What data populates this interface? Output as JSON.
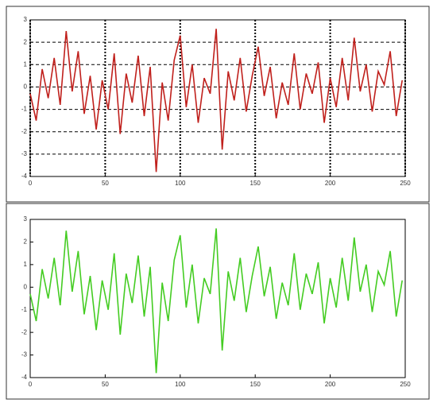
{
  "chart_data": [
    {
      "type": "line",
      "grid": true,
      "x": [
        0,
        4,
        8,
        12,
        16,
        20,
        24,
        28,
        32,
        36,
        40,
        44,
        48,
        52,
        56,
        60,
        64,
        68,
        72,
        76,
        80,
        84,
        88,
        92,
        96,
        100,
        104,
        108,
        112,
        116,
        120,
        124,
        128,
        132,
        136,
        140,
        144,
        148,
        152,
        156,
        160,
        164,
        168,
        172,
        176,
        180,
        184,
        188,
        192,
        196,
        200,
        204,
        208,
        212,
        216,
        220,
        224,
        228,
        232,
        236,
        240,
        244,
        248
      ],
      "series": [
        {
          "color": "#c0201c",
          "values": [
            -0.3,
            -1.5,
            0.8,
            -0.5,
            1.3,
            -0.8,
            2.5,
            -0.2,
            1.6,
            -1.2,
            0.5,
            -1.9,
            0.3,
            -1.0,
            1.5,
            -2.1,
            0.6,
            -0.7,
            1.4,
            -1.3,
            0.9,
            -3.8,
            0.2,
            -1.5,
            1.2,
            2.3,
            -0.9,
            1.0,
            -1.6,
            0.4,
            -0.3,
            2.6,
            -2.8,
            0.7,
            -0.6,
            1.3,
            -1.1,
            0.5,
            1.8,
            -0.4,
            0.9,
            -1.4,
            0.2,
            -0.8,
            1.5,
            -1.0,
            0.6,
            -0.3,
            1.1,
            -1.6,
            0.4,
            -0.9,
            1.3,
            -0.6,
            2.2,
            -0.2,
            1.0,
            -1.1,
            0.7,
            0.1,
            1.6,
            -1.3,
            0.3
          ]
        }
      ],
      "xlim": [
        0,
        250
      ],
      "xticks": [
        0,
        50,
        100,
        150,
        200,
        250
      ],
      "ylim": [
        -4,
        3
      ],
      "yticks": [
        -4,
        -3,
        -2,
        -1,
        0,
        1,
        2,
        3
      ]
    },
    {
      "type": "line",
      "grid": false,
      "x": [
        0,
        4,
        8,
        12,
        16,
        20,
        24,
        28,
        32,
        36,
        40,
        44,
        48,
        52,
        56,
        60,
        64,
        68,
        72,
        76,
        80,
        84,
        88,
        92,
        96,
        100,
        104,
        108,
        112,
        116,
        120,
        124,
        128,
        132,
        136,
        140,
        144,
        148,
        152,
        156,
        160,
        164,
        168,
        172,
        176,
        180,
        184,
        188,
        192,
        196,
        200,
        204,
        208,
        212,
        216,
        220,
        224,
        228,
        232,
        236,
        240,
        244,
        248
      ],
      "series": [
        {
          "color": "#44cc22",
          "values": [
            -0.3,
            -1.5,
            0.8,
            -0.5,
            1.3,
            -0.8,
            2.5,
            -0.2,
            1.6,
            -1.2,
            0.5,
            -1.9,
            0.3,
            -1.0,
            1.5,
            -2.1,
            0.6,
            -0.7,
            1.4,
            -1.3,
            0.9,
            -3.8,
            0.2,
            -1.5,
            1.2,
            2.3,
            -0.9,
            1.0,
            -1.6,
            0.4,
            -0.3,
            2.6,
            -2.8,
            0.7,
            -0.6,
            1.3,
            -1.1,
            0.5,
            1.8,
            -0.4,
            0.9,
            -1.4,
            0.2,
            -0.8,
            1.5,
            -1.0,
            0.6,
            -0.3,
            1.1,
            -1.6,
            0.4,
            -0.9,
            1.3,
            -0.6,
            2.2,
            -0.2,
            1.0,
            -1.1,
            0.7,
            0.1,
            1.6,
            -1.3,
            0.3
          ]
        }
      ],
      "xlim": [
        0,
        250
      ],
      "xticks": [
        0,
        50,
        100,
        150,
        200,
        250
      ],
      "ylim": [
        -4,
        3
      ],
      "yticks": [
        -4,
        -3,
        -2,
        -1,
        0,
        1,
        2,
        3
      ]
    }
  ]
}
